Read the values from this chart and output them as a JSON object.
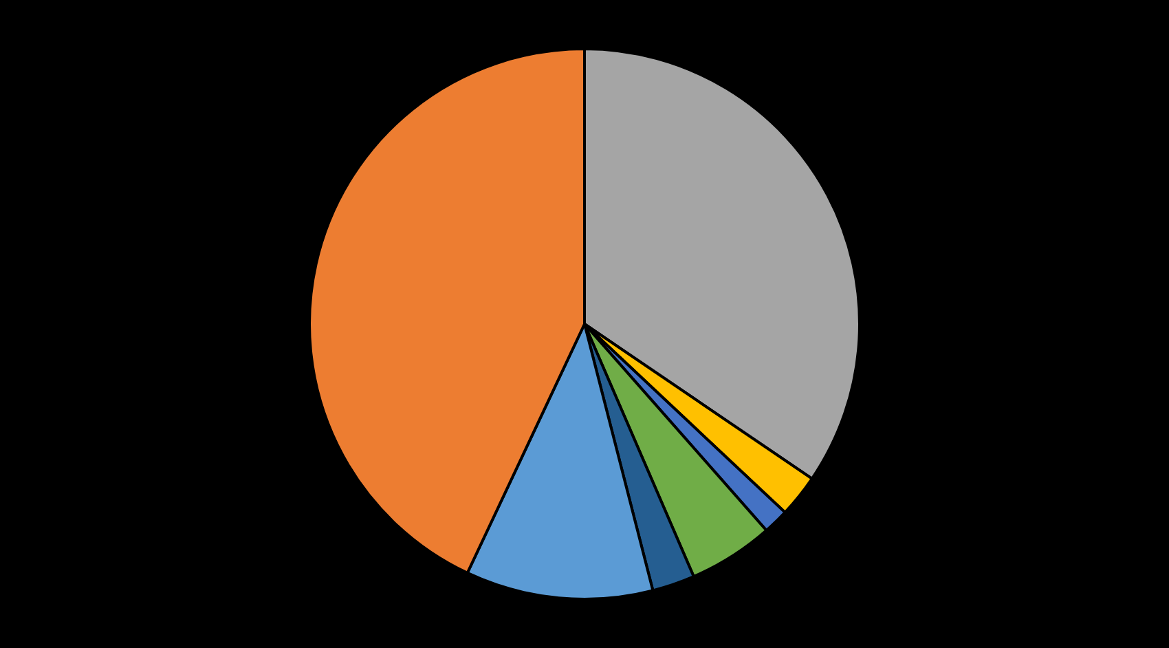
{
  "chart_data": {
    "type": "pie",
    "categories": [
      null,
      null,
      null,
      null,
      null,
      null,
      null
    ],
    "values": [
      34.5,
      2.5,
      1.5,
      5,
      2.5,
      11,
      43
    ],
    "colors": [
      "#a5a5a5",
      "#ffc000",
      "#4472c4",
      "#70ad47",
      "#255e91",
      "#5b9bd5",
      "#ed7d31"
    ],
    "legend": false
  }
}
